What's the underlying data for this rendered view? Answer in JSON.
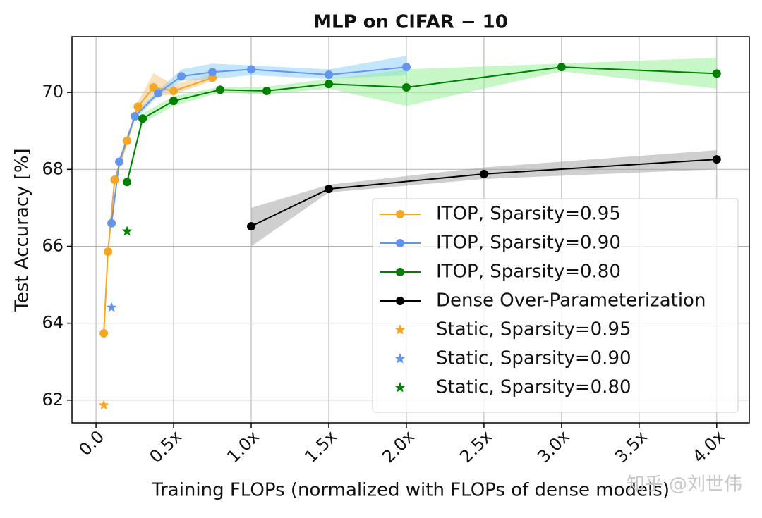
{
  "chart_data": {
    "type": "line",
    "title": "MLP on CIFAR − 10",
    "x_label": "Training FLOPs (normalized with FLOPs of dense models)",
    "y_label": "Test Accuracy [%]",
    "watermark": "知乎 @刘世伟",
    "xlim": [
      -0.155,
      4.21
    ],
    "ylim": [
      61.41,
      71.45
    ],
    "xticks": [
      {
        "value": 0,
        "label": "0.0"
      },
      {
        "value": 0.5,
        "label": "0.5x"
      },
      {
        "value": 1.0,
        "label": "1.0x"
      },
      {
        "value": 1.5,
        "label": "1.5x"
      },
      {
        "value": 2.0,
        "label": "2.0x"
      },
      {
        "value": 2.5,
        "label": "2.5x"
      },
      {
        "value": 3.0,
        "label": "3.0x"
      },
      {
        "value": 3.5,
        "label": "3.5x"
      },
      {
        "value": 4.0,
        "label": "4.0x"
      }
    ],
    "yticks": [
      62,
      64,
      66,
      68,
      70
    ],
    "grid": true,
    "legend": "lower right",
    "series": [
      {
        "name": "ITOP, Sparsity=0.95",
        "color": "#f5a623",
        "band_color": "#f5c27a",
        "marker": "circle",
        "x": [
          0.05,
          0.077,
          0.12,
          0.2,
          0.27,
          0.37,
          0.5,
          0.75
        ],
        "values": [
          63.74,
          65.86,
          67.73,
          68.74,
          69.63,
          70.13,
          70.04,
          70.38
        ],
        "lower": [
          63.7,
          65.8,
          67.65,
          68.65,
          69.5,
          69.9,
          69.95,
          70.3
        ],
        "upper": [
          63.8,
          65.95,
          67.8,
          68.85,
          69.75,
          70.5,
          70.2,
          70.5
        ]
      },
      {
        "name": "ITOP, Sparsity=0.90",
        "color": "#6495ed",
        "band_color": "#87cefa",
        "marker": "circle",
        "x": [
          0.1,
          0.15,
          0.25,
          0.4,
          0.55,
          0.75,
          1.0,
          1.5,
          2.0
        ],
        "values": [
          66.6,
          68.2,
          69.38,
          69.98,
          70.42,
          70.53,
          70.6,
          70.46,
          70.66
        ],
        "lower": [
          66.55,
          68.1,
          69.3,
          69.9,
          70.3,
          70.35,
          70.45,
          70.35,
          70.45
        ],
        "upper": [
          66.65,
          68.3,
          69.45,
          70.05,
          70.6,
          70.75,
          70.7,
          70.6,
          70.95
        ]
      },
      {
        "name": "ITOP, Sparsity=0.80",
        "color": "#008000",
        "band_color": "#90ee90",
        "marker": "circle",
        "x": [
          0.2,
          0.3,
          0.5,
          0.8,
          1.1,
          1.5,
          2.0,
          3.0,
          4.0
        ],
        "values": [
          67.67,
          69.32,
          69.78,
          70.07,
          70.04,
          70.22,
          70.13,
          70.66,
          70.49
        ],
        "lower": [
          67.6,
          69.2,
          69.65,
          70.0,
          69.95,
          70.1,
          69.65,
          70.55,
          70.1
        ],
        "upper": [
          67.75,
          69.45,
          69.9,
          70.15,
          70.15,
          70.35,
          70.6,
          70.75,
          70.9
        ]
      },
      {
        "name": "Dense Over-Parameterization",
        "color": "#000000",
        "band_color": "#a0a0a0",
        "marker": "circle",
        "x": [
          1.0,
          1.5,
          2.5,
          4.0
        ],
        "values": [
          66.52,
          67.49,
          67.88,
          68.26
        ],
        "lower": [
          66.0,
          67.4,
          67.75,
          68.0
        ],
        "upper": [
          67.0,
          67.6,
          68.05,
          68.5
        ]
      },
      {
        "name": "Static, Sparsity=0.95",
        "color": "#f5a623",
        "marker": "star",
        "x": [
          0.05
        ],
        "values": [
          61.87
        ]
      },
      {
        "name": "Static, Sparsity=0.90",
        "color": "#6495ed",
        "marker": "star",
        "x": [
          0.1
        ],
        "values": [
          64.41
        ]
      },
      {
        "name": "Static, Sparsity=0.80",
        "color": "#008000",
        "marker": "star",
        "x": [
          0.2
        ],
        "values": [
          66.39
        ]
      }
    ]
  }
}
